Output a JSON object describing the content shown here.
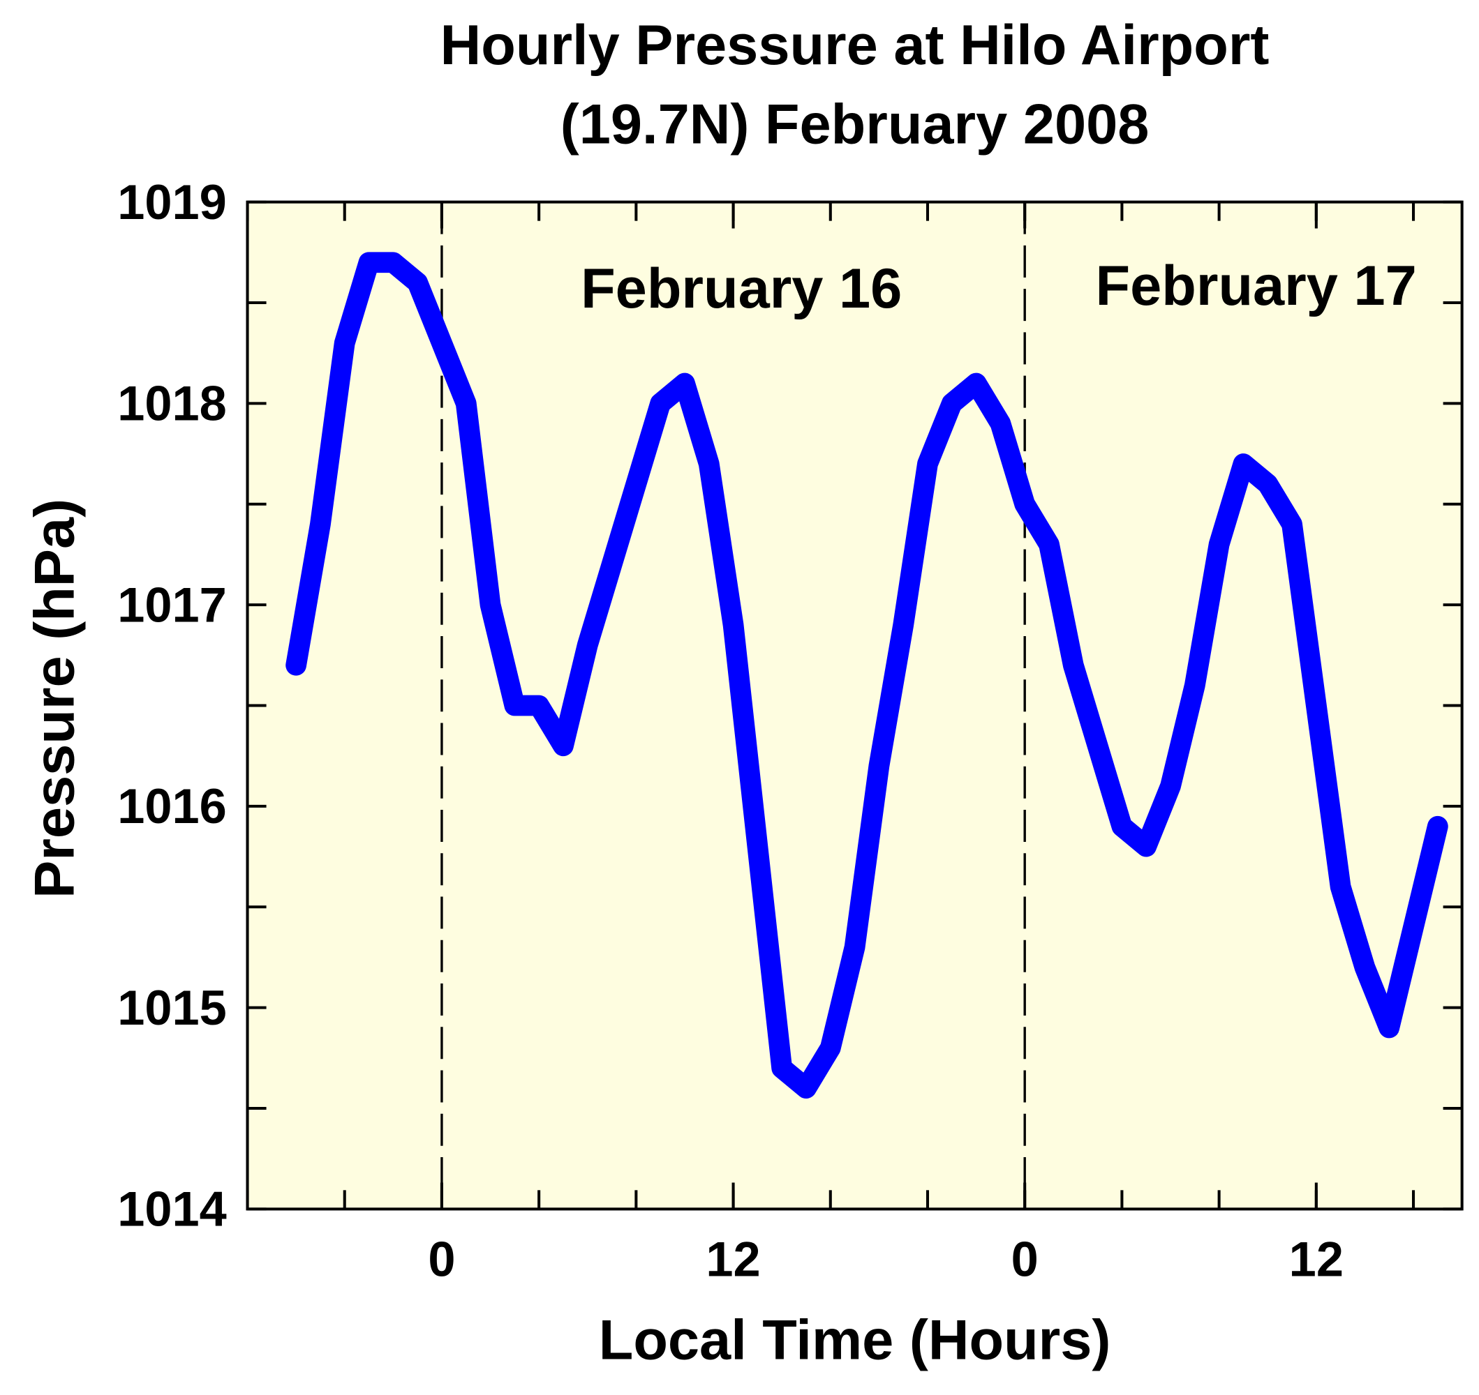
{
  "chart_data": {
    "type": "line",
    "title": [
      "Hourly Pressure at Hilo Airport",
      "(19.7N) February 2008"
    ],
    "xlabel": "Local Time (Hours)",
    "ylabel": "Pressure (hPa)",
    "annotations": [
      "February 16",
      "February 17"
    ],
    "x": [
      -6,
      -5,
      -4,
      -3,
      -2,
      -1,
      0,
      1,
      2,
      3,
      4,
      5,
      6,
      7,
      8,
      9,
      10,
      11,
      12,
      13,
      14,
      15,
      16,
      17,
      18,
      19,
      20,
      21,
      22,
      23,
      24,
      25,
      26,
      27,
      28,
      29,
      30,
      31,
      32,
      33,
      34,
      35,
      36,
      37,
      38,
      39,
      40,
      41
    ],
    "series": [
      {
        "name": "Pressure",
        "color": "#0000ff",
        "values": [
          1016.7,
          1017.4,
          1018.3,
          1018.7,
          1018.7,
          1018.6,
          1018.3,
          1018.0,
          1017.0,
          1016.5,
          1016.5,
          1016.3,
          1016.8,
          1017.2,
          1017.6,
          1018.0,
          1018.1,
          1017.7,
          1016.9,
          1015.8,
          1014.7,
          1014.6,
          1014.8,
          1015.3,
          1016.2,
          1016.9,
          1017.7,
          1018.0,
          1018.1,
          1017.9,
          1017.5,
          1017.3,
          1016.7,
          1016.3,
          1015.9,
          1015.8,
          1016.1,
          1016.6,
          1017.3,
          1017.7,
          1017.6,
          1017.4,
          1016.5,
          1015.6,
          1015.2,
          1014.9,
          1015.4,
          1015.9
        ]
      }
    ],
    "xlim": [
      -8,
      42
    ],
    "xticks": [
      0,
      12,
      {
        "value": 24,
        "label": "0"
      },
      {
        "value": 36,
        "label": "12"
      }
    ],
    "ylim": [
      1014,
      1019
    ],
    "yticks": [
      1014,
      1015,
      1016,
      1017,
      1018,
      1019
    ],
    "background": "#fefde0"
  }
}
